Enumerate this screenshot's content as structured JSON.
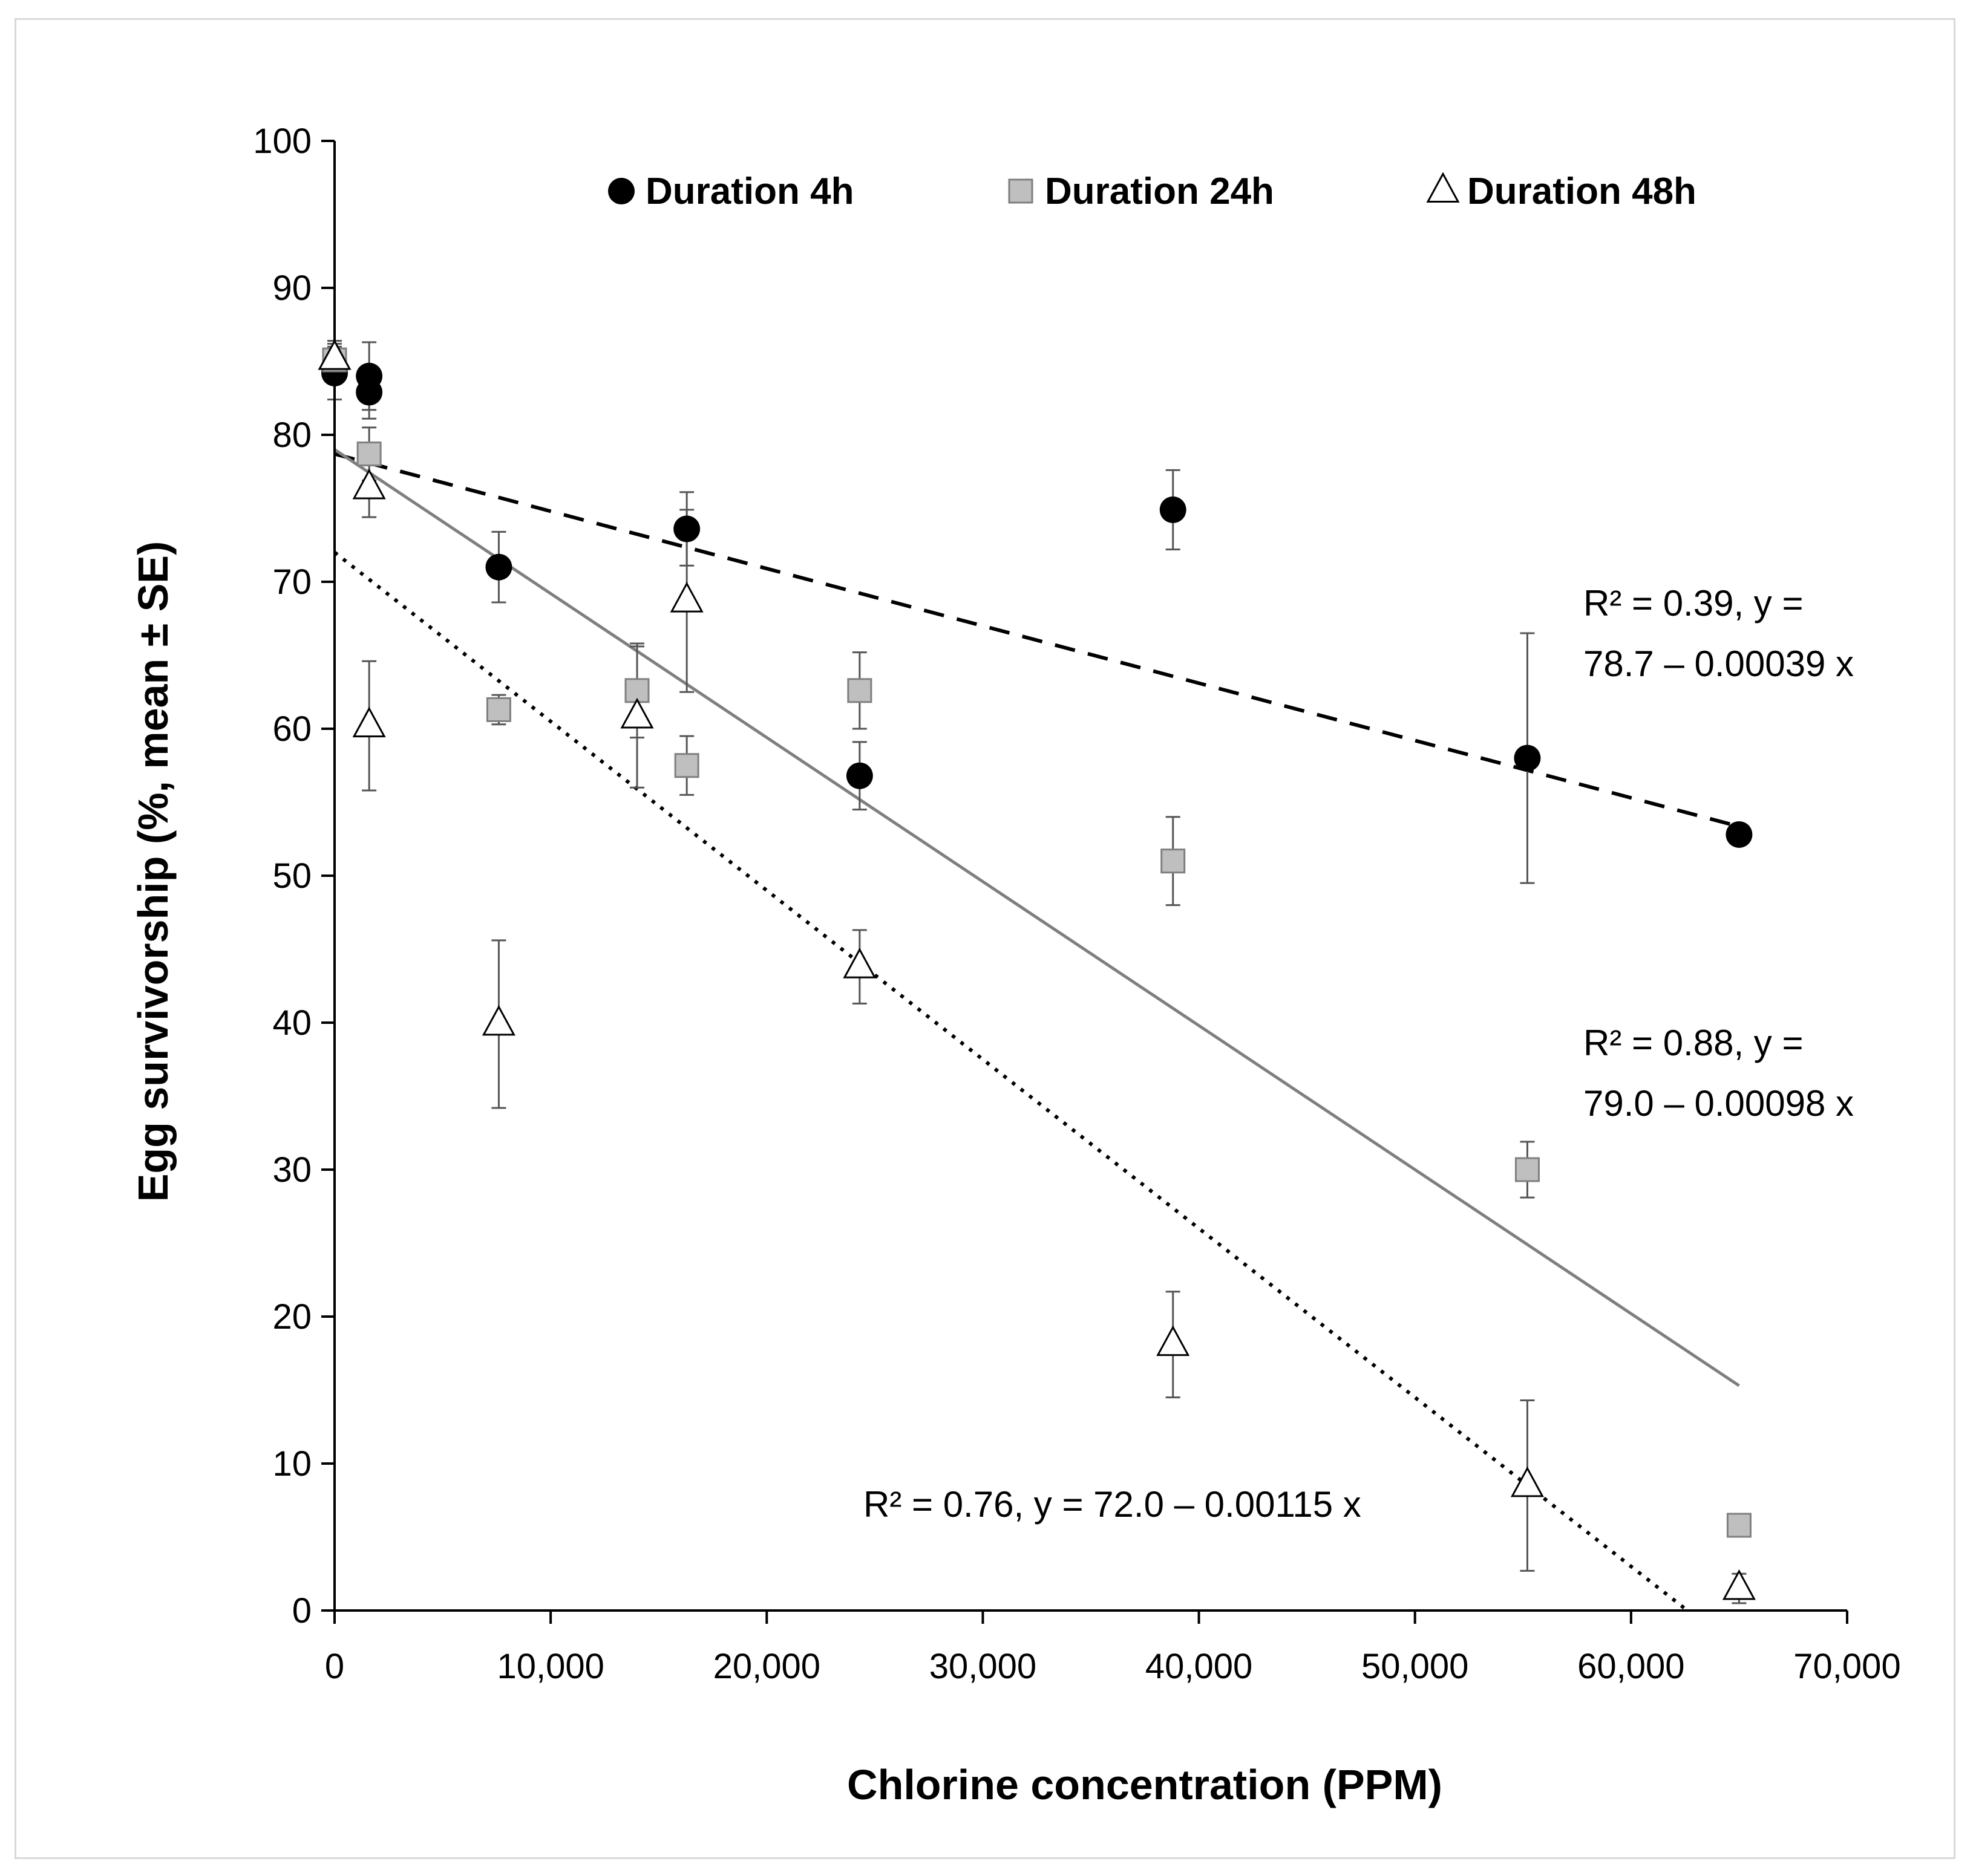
{
  "chart_data": {
    "type": "scatter",
    "xlabel": "Chlorine concentration (PPM)",
    "ylabel": "Egg survivorship (%, mean ± SE)",
    "xlim": [
      0,
      70000
    ],
    "ylim": [
      0,
      100
    ],
    "x_ticks": [
      0,
      10000,
      20000,
      30000,
      40000,
      50000,
      60000,
      70000
    ],
    "x_tick_labels": [
      "0",
      "10,000",
      "20,000",
      "30,000",
      "40,000",
      "50,000",
      "60,000",
      "70,000"
    ],
    "y_ticks": [
      0,
      10,
      20,
      30,
      40,
      50,
      60,
      70,
      80,
      90,
      100
    ],
    "y_tick_labels": [
      "0",
      "10",
      "20",
      "30",
      "40",
      "50",
      "60",
      "70",
      "80",
      "90",
      "100"
    ],
    "grid": false,
    "legend": {
      "position": "top",
      "entries": [
        "Duration 4h",
        "Duration 24h",
        "Duration 48h"
      ]
    },
    "series": [
      {
        "name": "Duration 4h",
        "marker": "circle",
        "color": "#000000",
        "x": [
          0,
          1600,
          1600,
          7600,
          16300,
          24300,
          38800,
          55200,
          65000
        ],
        "y": [
          84.2,
          84.0,
          82.9,
          71.0,
          73.6,
          56.8,
          74.9,
          58.0,
          52.8
        ],
        "err": [
          1.8,
          2.3,
          1.8,
          2.4,
          2.5,
          2.3,
          2.7,
          8.5,
          0.6
        ],
        "trend": {
          "intercept": 78.7,
          "slope": -0.00039,
          "x_range": [
            0,
            65000
          ],
          "style": "dashed"
        }
      },
      {
        "name": "Duration 24h",
        "marker": "square",
        "color": "#bfbfbf",
        "x": [
          0,
          1600,
          7600,
          14000,
          16300,
          24300,
          38800,
          55200,
          65000
        ],
        "y": [
          85.1,
          78.7,
          61.3,
          62.6,
          57.5,
          62.6,
          51.0,
          30.0,
          5.8
        ],
        "err": [
          1.3,
          1.8,
          1.0,
          3.2,
          2.0,
          2.6,
          3.0,
          1.9,
          0.0
        ],
        "trend": {
          "intercept": 79.0,
          "slope": -0.00098,
          "x_range": [
            0,
            65000
          ],
          "style": "solid"
        }
      },
      {
        "name": "Duration 48h",
        "marker": "triangle",
        "color": "#ffffff",
        "x": [
          0,
          1600,
          1600,
          7600,
          14000,
          16300,
          24300,
          38800,
          55200,
          65000
        ],
        "y": [
          85.2,
          76.4,
          60.2,
          39.9,
          60.8,
          68.7,
          43.8,
          18.1,
          8.5,
          1.5
        ],
        "err": [
          1.0,
          2.0,
          4.4,
          5.7,
          4.8,
          6.2,
          2.5,
          3.6,
          5.8,
          1.0
        ],
        "trend": {
          "intercept": 72.0,
          "slope": -0.00115,
          "x_range": [
            0,
            62600
          ],
          "style": "dotted"
        }
      }
    ],
    "annotations": [
      {
        "series": "Duration 4h",
        "line1": "R² = 0.39, y =",
        "line2": "78.7 – 0.00039 x"
      },
      {
        "series": "Duration 24h",
        "line1": "R² = 0.88, y =",
        "line2": "79.0 – 0.00098 x"
      },
      {
        "series": "Duration 48h",
        "line1": "R² = 0.76, y = 72.0 – 0.00115 x",
        "line2": ""
      }
    ]
  }
}
